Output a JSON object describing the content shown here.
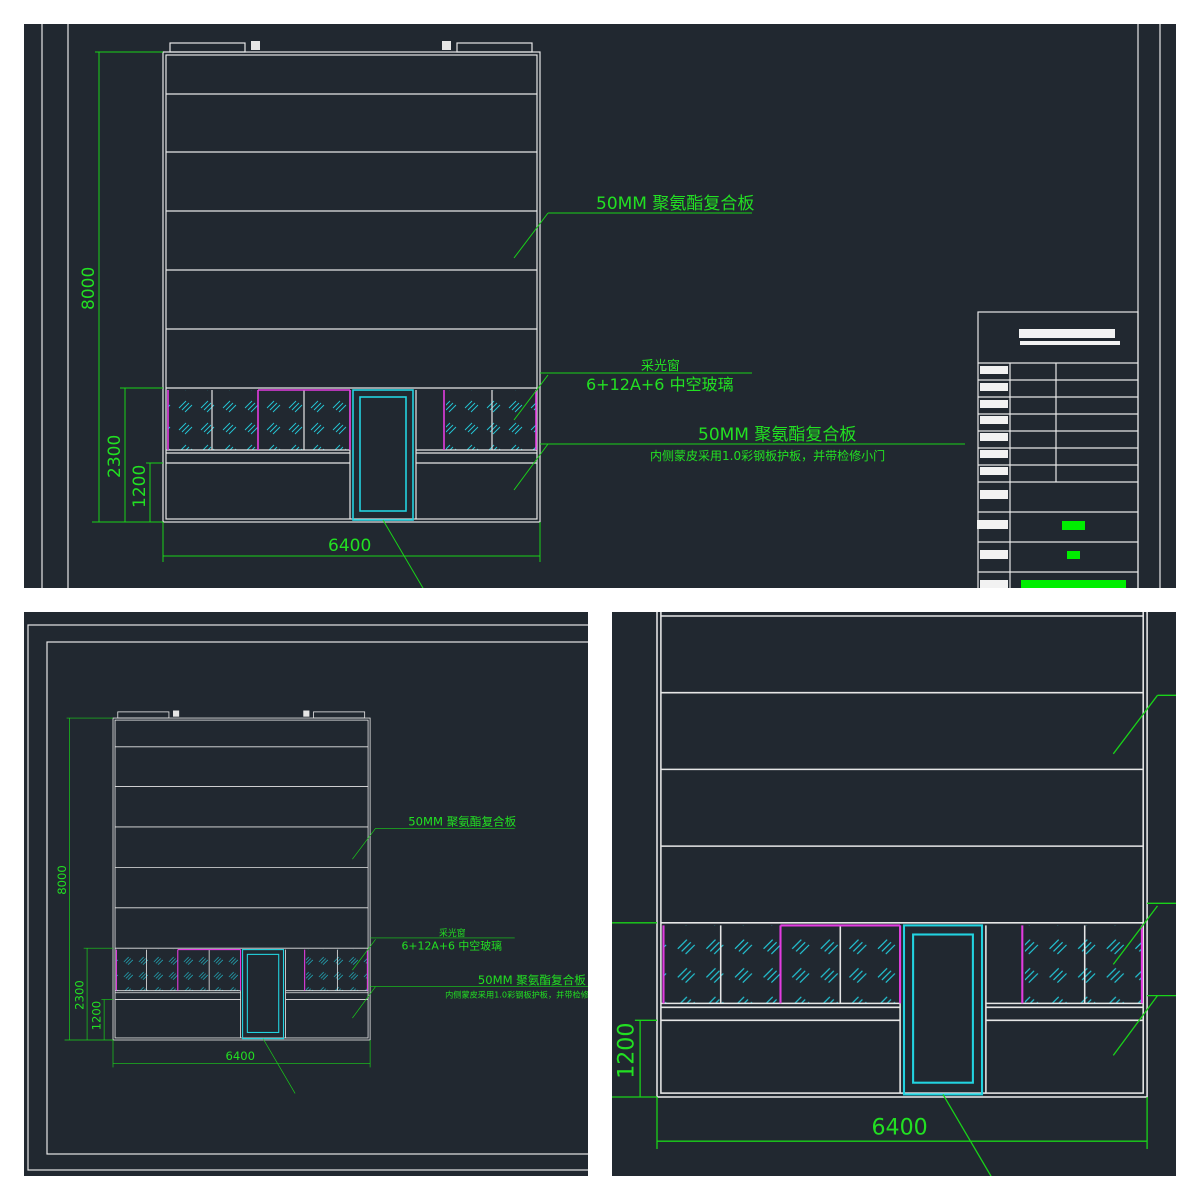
{
  "drawing": {
    "dimensions": {
      "total_height": "8000",
      "lower_height": "2300",
      "base_height": "1200",
      "total_width": "6400"
    },
    "labels": {
      "wall_panel": "50MM 聚氨酯复合板",
      "skylight_title": "采光窗",
      "skylight_glass": "6+12A+6 中空玻璃",
      "lower_panel": "50MM 聚氨酯复合板",
      "lower_panel_note": "内侧蒙皮采用1.0彩钢板护板，并带检修小门"
    }
  },
  "colors": {
    "background": "#212830",
    "lines": "#e6e6e6",
    "dimension": "#19d219",
    "door": "#22d3e0",
    "window_edge": "#e23ce0"
  },
  "panels": [
    "top-full-elevation",
    "bottom-left-overview",
    "bottom-right-detail"
  ]
}
